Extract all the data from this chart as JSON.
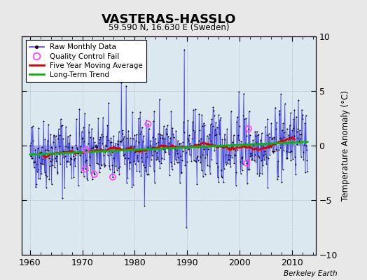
{
  "title": "VASTERAS-HASSLO",
  "subtitle": "59.590 N, 16.630 E (Sweden)",
  "ylabel": "Temperature Anomaly (°C)",
  "credit": "Berkeley Earth",
  "xlim": [
    1958.5,
    2014.5
  ],
  "ylim": [
    -10,
    10
  ],
  "yticks": [
    -10,
    -5,
    0,
    5,
    10
  ],
  "xticks": [
    1960,
    1970,
    1980,
    1990,
    2000,
    2010
  ],
  "line_color": "#4444dd",
  "dot_color": "#000000",
  "moving_avg_color": "#dd0000",
  "trend_color": "#00bb00",
  "qc_fail_color": "#ff44ff",
  "plot_bg_color": "#dce8f0",
  "fig_bg_color": "#e8e8e8",
  "seed": 42
}
